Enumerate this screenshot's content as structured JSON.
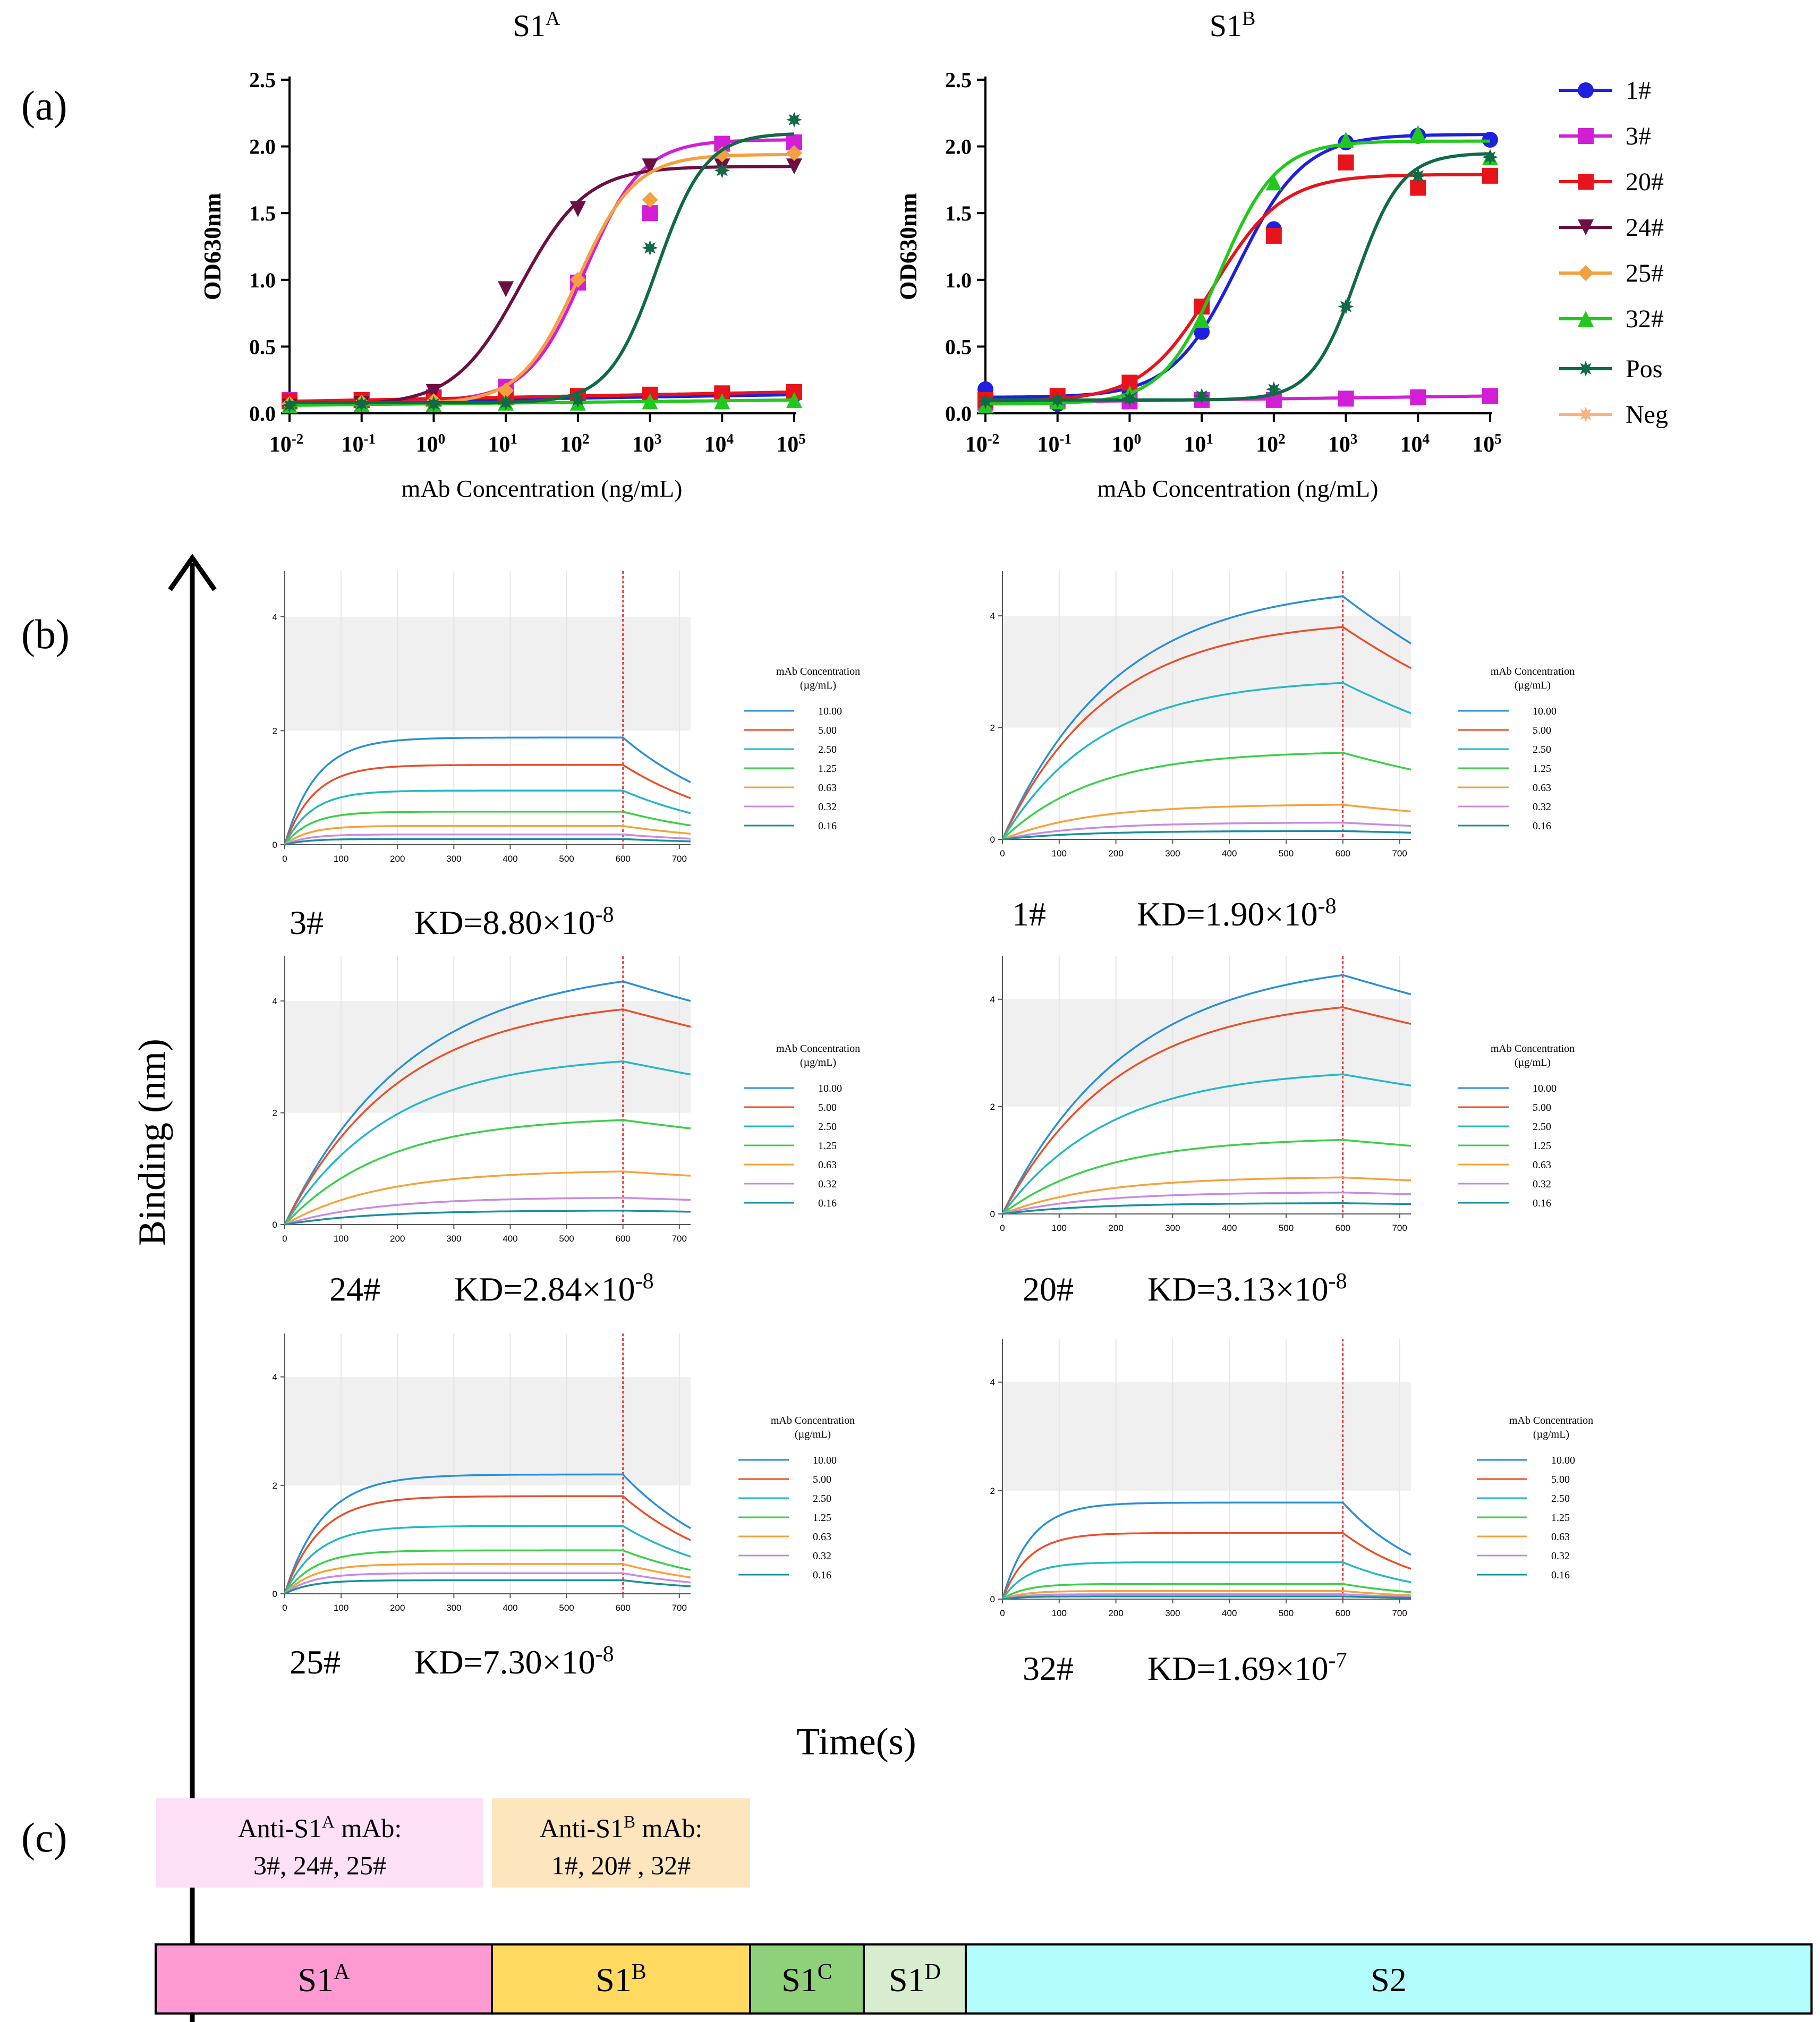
{
  "panel_labels": {
    "a": "(a)",
    "b": "(b)",
    "c": "(c)"
  },
  "colors": {
    "1#": "#1f1fe0",
    "3#": "#d21fd6",
    "20#": "#e8141c",
    "24#": "#6b0f45",
    "25#": "#f5a040",
    "32#": "#22c81e",
    "Pos": "#0f6a45",
    "Neg": "#f8b480",
    "bli": [
      "#2a8fd6",
      "#e8502a",
      "#25b7c4",
      "#3ccf4a",
      "#f6a23a",
      "#c78be3",
      "#1a8f9e"
    ],
    "S1A_box": "#ff9ad2",
    "S1B_box": "#ffd960",
    "S1C_box": "#8fd07a",
    "S1D_box": "#d8ecd0",
    "S2_box": "#b2fdfb",
    "antiA_bg": "#fde0f6",
    "antiB_bg": "#fde5bd"
  },
  "legend_a": [
    "1#",
    "3#",
    "20#",
    "24#",
    "25#",
    "32#",
    "Pos",
    "Neg"
  ],
  "chart_data": [
    {
      "id": "elisa-s1a",
      "type": "line",
      "title_base": "S1",
      "title_sup": "A",
      "xlabel": "mAb Concentration (ng/mL)",
      "ylabel": "OD630nm",
      "xscale": "log10",
      "xlim": [
        -2,
        5
      ],
      "ylim": [
        0,
        2.5
      ],
      "yticks": [
        "0.0",
        "0.5",
        "1.0",
        "1.5",
        "2.0",
        "2.5"
      ],
      "xtick_exponents": [
        "-2",
        "-1",
        "0",
        "1",
        "2",
        "3",
        "4",
        "5"
      ],
      "x_log": [
        -2,
        -1,
        0,
        1,
        2,
        3,
        4,
        5
      ],
      "series": [
        {
          "name": "1#",
          "marker": "circle",
          "values": [
            0.08,
            0.09,
            0.1,
            0.11,
            0.12,
            0.12,
            0.13,
            0.14
          ],
          "fit": {
            "type": "linear",
            "y0": 0.08,
            "y1": 0.14
          }
        },
        {
          "name": "3#",
          "marker": "square",
          "values": [
            0.1,
            0.1,
            0.12,
            0.2,
            0.98,
            1.5,
            2.02,
            2.03
          ],
          "fit": {
            "type": "logistic",
            "bottom": 0.09,
            "top": 2.05,
            "log_ec50": 2.1,
            "hill": 1.1
          }
        },
        {
          "name": "20#",
          "marker": "square",
          "values": [
            0.09,
            0.1,
            0.11,
            0.12,
            0.13,
            0.14,
            0.15,
            0.16
          ],
          "fit": {
            "type": "linear",
            "y0": 0.09,
            "y1": 0.16
          }
        },
        {
          "name": "24#",
          "marker": "triangle-down",
          "values": [
            0.05,
            0.07,
            0.16,
            0.93,
            1.53,
            1.85,
            1.85,
            1.85
          ],
          "fit": {
            "type": "logistic",
            "bottom": 0.06,
            "top": 1.85,
            "log_ec50": 1.2,
            "hill": 0.95
          }
        },
        {
          "name": "25#",
          "marker": "diamond",
          "values": [
            0.07,
            0.08,
            0.09,
            0.17,
            1.0,
            1.6,
            1.94,
            1.95
          ],
          "fit": {
            "type": "logistic",
            "bottom": 0.07,
            "top": 1.94,
            "log_ec50": 2.0,
            "hill": 1.1
          }
        },
        {
          "name": "32#",
          "marker": "triangle",
          "values": [
            0.06,
            0.07,
            0.07,
            0.08,
            0.08,
            0.09,
            0.09,
            0.1
          ],
          "fit": {
            "type": "linear",
            "y0": 0.06,
            "y1": 0.1
          }
        },
        {
          "name": "Pos",
          "marker": "star",
          "values": [
            0.06,
            0.07,
            0.07,
            0.08,
            0.1,
            1.24,
            1.82,
            2.2
          ],
          "fit": {
            "type": "logistic",
            "bottom": 0.08,
            "top": 2.1,
            "log_ec50": 3.1,
            "hill": 1.3
          }
        }
      ]
    },
    {
      "id": "elisa-s1b",
      "type": "line",
      "title_base": "S1",
      "title_sup": "B",
      "xlabel": "mAb Concentration (ng/mL)",
      "ylabel": "OD630nm",
      "xscale": "log10",
      "xlim": [
        -2,
        5
      ],
      "ylim": [
        0,
        2.5
      ],
      "yticks": [
        "0.0",
        "0.5",
        "1.0",
        "1.5",
        "2.0",
        "2.5"
      ],
      "xtick_exponents": [
        "-2",
        "-1",
        "0",
        "1",
        "2",
        "3",
        "4",
        "5"
      ],
      "x_log": [
        -2,
        -1,
        0,
        1,
        2,
        3,
        4,
        5
      ],
      "series": [
        {
          "name": "1#",
          "marker": "circle",
          "values": [
            0.18,
            0.07,
            0.16,
            0.61,
            1.38,
            2.03,
            2.08,
            2.05
          ],
          "fit": {
            "type": "logistic",
            "bottom": 0.12,
            "top": 2.09,
            "log_ec50": 1.5,
            "hill": 0.95
          }
        },
        {
          "name": "3#",
          "marker": "square",
          "values": [
            0.08,
            0.09,
            0.09,
            0.1,
            0.1,
            0.11,
            0.12,
            0.13
          ],
          "fit": {
            "type": "linear",
            "y0": 0.08,
            "y1": 0.13
          }
        },
        {
          "name": "20#",
          "marker": "square",
          "values": [
            0.1,
            0.13,
            0.23,
            0.8,
            1.33,
            1.88,
            1.69,
            1.78
          ],
          "fit": {
            "type": "logistic",
            "bottom": 0.09,
            "top": 1.79,
            "log_ec50": 1.15,
            "hill": 0.9
          }
        },
        {
          "name": "32#",
          "marker": "triangle",
          "values": [
            0.06,
            0.09,
            0.15,
            0.7,
            1.73,
            2.05,
            2.1,
            1.92
          ],
          "fit": {
            "type": "logistic",
            "bottom": 0.07,
            "top": 2.04,
            "log_ec50": 1.25,
            "hill": 1.1
          }
        },
        {
          "name": "Pos",
          "marker": "star",
          "values": [
            0.09,
            0.1,
            0.11,
            0.13,
            0.18,
            0.8,
            1.78,
            1.92
          ],
          "fit": {
            "type": "logistic",
            "bottom": 0.1,
            "top": 1.95,
            "log_ec50": 3.15,
            "hill": 1.4
          }
        }
      ]
    }
  ],
  "panel_b": {
    "ylabel": "Binding (nm)",
    "xlabel": "Time(s)",
    "legend_title_1": "mAb Concentration",
    "legend_title_2": "(µg/mL)",
    "concentrations": [
      "10.00",
      "5.00",
      "2.50",
      "1.25",
      "0.63",
      "0.32",
      "0.16"
    ],
    "x_ticks": [
      "0",
      "100",
      "200",
      "300",
      "400",
      "500",
      "600",
      "700"
    ],
    "y_ticks": [
      "0",
      "2",
      "4"
    ],
    "xlim": [
      0,
      720
    ],
    "ylim": [
      0,
      4.8
    ],
    "shaded_band": [
      2,
      4
    ],
    "dissociation_start": 600,
    "panels": [
      {
        "mab": "3#",
        "kd_base": "KD=8.80×10",
        "kd_exp": "-8",
        "max_binding": [
          1.88,
          1.4,
          0.95,
          0.58,
          0.33,
          0.18,
          0.1
        ],
        "k": 0.018,
        "koff": 0.0045
      },
      {
        "mab": "1#",
        "kd_base": "KD=1.90×10",
        "kd_exp": "-8",
        "max_binding": [
          4.35,
          3.8,
          2.8,
          1.55,
          0.62,
          0.3,
          0.15
        ],
        "k": 0.005,
        "koff": 0.0018
      },
      {
        "mab": "24#",
        "kd_base": "KD=2.84×10",
        "kd_exp": "-8",
        "max_binding": [
          4.35,
          3.85,
          2.92,
          1.87,
          0.95,
          0.48,
          0.25
        ],
        "k": 0.0045,
        "koff": 0.0007
      },
      {
        "mab": "20#",
        "kd_base": "KD=3.13×10",
        "kd_exp": "-8",
        "max_binding": [
          4.45,
          3.85,
          2.6,
          1.38,
          0.68,
          0.4,
          0.2
        ],
        "k": 0.0045,
        "koff": 0.0007
      },
      {
        "mab": "25#",
        "kd_base": "KD=7.30×10",
        "kd_exp": "-8",
        "max_binding": [
          2.2,
          1.8,
          1.25,
          0.8,
          0.55,
          0.38,
          0.25
        ],
        "k": 0.015,
        "koff": 0.005
      },
      {
        "mab": "32#",
        "kd_base": "KD=1.69×10",
        "kd_exp": "-7",
        "max_binding": [
          1.78,
          1.22,
          0.68,
          0.28,
          0.15,
          0.09,
          0.05
        ],
        "k": 0.02,
        "koff": 0.0065
      }
    ]
  },
  "panel_c": {
    "anti_a_line1_base": "Anti-S1",
    "anti_a_line1_sup": "A",
    "anti_a_line1_rest": " mAb:",
    "anti_a_line2": "3#, 24#, 25#",
    "anti_b_line1_base": "Anti-S1",
    "anti_b_line1_sup": "B",
    "anti_b_line1_rest": " mAb:",
    "anti_b_line2": "1#, 20# , 32#",
    "domains": [
      {
        "base": "S1",
        "sup": "A",
        "color_key": "S1A_box"
      },
      {
        "base": "S1",
        "sup": "B",
        "color_key": "S1B_box"
      },
      {
        "base": "S1",
        "sup": "C",
        "color_key": "S1C_box"
      },
      {
        "base": "S1",
        "sup": "D",
        "color_key": "S1D_box"
      },
      {
        "base": "S2",
        "sup": "",
        "color_key": "S2_box"
      }
    ]
  }
}
